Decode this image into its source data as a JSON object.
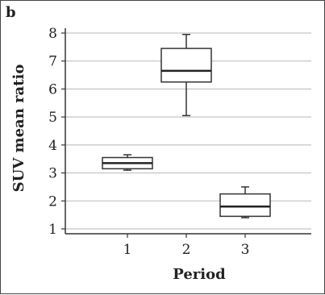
{
  "panel_label": "b",
  "chart_data": {
    "type": "box",
    "categories": [
      "1",
      "2",
      "3"
    ],
    "xlabel": "Period",
    "ylabel": "SUV mean ratio",
    "ylim": [
      1,
      8
    ],
    "yticks": [
      "1",
      "2",
      "3",
      "4",
      "5",
      "6",
      "7",
      "8"
    ],
    "grid": "horizontal",
    "boxes": [
      {
        "category": "1",
        "min": 3.1,
        "q1": 3.15,
        "median": 3.35,
        "q3": 3.55,
        "max": 3.65
      },
      {
        "category": "2",
        "min": 5.05,
        "q1": 6.25,
        "median": 6.65,
        "q3": 7.45,
        "max": 7.95
      },
      {
        "category": "3",
        "min": 1.4,
        "q1": 1.45,
        "median": 1.8,
        "q3": 2.25,
        "max": 2.5
      }
    ]
  }
}
